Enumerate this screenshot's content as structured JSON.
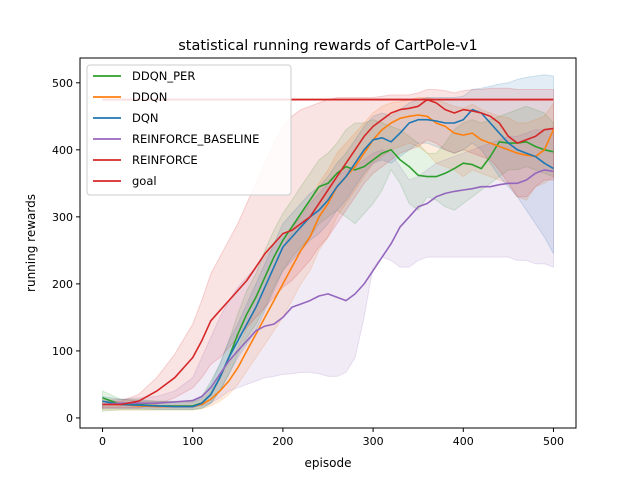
{
  "chart_data": {
    "type": "line",
    "title": "statistical running rewards of CartPole-v1",
    "xlabel": "episode",
    "ylabel": "running rewards",
    "xlim": [
      -25,
      525
    ],
    "ylim": [
      -15,
      537
    ],
    "xticks": [
      0,
      100,
      200,
      300,
      400,
      500
    ],
    "yticks": [
      0,
      100,
      200,
      300,
      400,
      500
    ],
    "grid": false,
    "legend_position": "top-left",
    "goal_value": 475,
    "series": [
      {
        "name": "DDQN_PER",
        "color": "#2ca02c",
        "x": [
          0,
          20,
          40,
          60,
          80,
          100,
          110,
          120,
          130,
          140,
          150,
          160,
          170,
          180,
          190,
          200,
          210,
          220,
          230,
          240,
          250,
          260,
          270,
          280,
          290,
          300,
          310,
          320,
          330,
          340,
          350,
          360,
          370,
          380,
          390,
          400,
          410,
          420,
          430,
          440,
          450,
          460,
          470,
          480,
          490,
          500
        ],
        "y": [
          30,
          20,
          20,
          18,
          18,
          18,
          22,
          35,
          60,
          90,
          125,
          155,
          180,
          210,
          240,
          265,
          285,
          305,
          325,
          345,
          350,
          365,
          375,
          370,
          375,
          385,
          395,
          400,
          385,
          375,
          362,
          360,
          360,
          365,
          372,
          380,
          378,
          372,
          390,
          412,
          410,
          410,
          412,
          405,
          400,
          397
        ],
        "lower": [
          10,
          12,
          12,
          12,
          12,
          12,
          14,
          22,
          40,
          65,
          95,
          120,
          140,
          165,
          195,
          220,
          240,
          255,
          270,
          290,
          300,
          310,
          300,
          290,
          305,
          320,
          340,
          370,
          350,
          320,
          310,
          330,
          325,
          315,
          310,
          320,
          330,
          340,
          350,
          360,
          370,
          370,
          375,
          370,
          365,
          360
        ],
        "upper": [
          40,
          28,
          28,
          25,
          25,
          25,
          32,
          55,
          80,
          115,
          155,
          190,
          215,
          250,
          280,
          305,
          325,
          345,
          365,
          385,
          395,
          410,
          430,
          440,
          440,
          445,
          440,
          435,
          430,
          420,
          410,
          395,
          395,
          410,
          430,
          440,
          445,
          440,
          445,
          450,
          455,
          460,
          465,
          460,
          455,
          440
        ]
      },
      {
        "name": "DDQN",
        "color": "#ff7f0e",
        "x": [
          0,
          20,
          40,
          60,
          80,
          100,
          110,
          120,
          130,
          140,
          150,
          160,
          170,
          180,
          190,
          200,
          210,
          220,
          230,
          240,
          250,
          260,
          270,
          280,
          290,
          300,
          310,
          320,
          330,
          340,
          350,
          360,
          370,
          380,
          390,
          400,
          410,
          420,
          430,
          440,
          450,
          460,
          470,
          480,
          490,
          500
        ],
        "y": [
          20,
          20,
          18,
          17,
          17,
          17,
          20,
          28,
          40,
          55,
          75,
          100,
          125,
          150,
          175,
          200,
          225,
          250,
          270,
          300,
          320,
          345,
          360,
          375,
          395,
          415,
          430,
          440,
          447,
          450,
          452,
          450,
          440,
          435,
          425,
          422,
          425,
          415,
          410,
          405,
          400,
          395,
          392,
          390,
          400,
          430
        ],
        "lower": [
          12,
          12,
          12,
          12,
          12,
          12,
          14,
          18,
          25,
          35,
          50,
          70,
          90,
          110,
          130,
          150,
          175,
          200,
          220,
          250,
          270,
          300,
          320,
          340,
          360,
          380,
          390,
          400,
          405,
          410,
          405,
          395,
          380,
          375,
          370,
          360,
          370,
          365,
          360,
          355,
          350,
          330,
          325,
          345,
          350,
          360
        ],
        "upper": [
          28,
          28,
          25,
          24,
          24,
          24,
          28,
          40,
          60,
          80,
          105,
          135,
          165,
          195,
          225,
          255,
          280,
          305,
          325,
          350,
          370,
          395,
          410,
          425,
          440,
          455,
          465,
          470,
          472,
          475,
          478,
          478,
          475,
          470,
          465,
          462,
          468,
          460,
          455,
          450,
          448,
          440,
          440,
          445,
          450,
          470
        ]
      },
      {
        "name": "DQN",
        "color": "#1f77b4",
        "x": [
          0,
          20,
          40,
          60,
          80,
          100,
          110,
          120,
          130,
          140,
          150,
          160,
          170,
          180,
          190,
          200,
          210,
          220,
          230,
          240,
          250,
          260,
          270,
          280,
          290,
          300,
          310,
          320,
          330,
          340,
          350,
          360,
          370,
          380,
          390,
          400,
          410,
          420,
          430,
          440,
          450,
          460,
          470,
          480,
          490,
          500
        ],
        "y": [
          25,
          20,
          19,
          18,
          17,
          17,
          22,
          35,
          60,
          90,
          115,
          140,
          165,
          195,
          225,
          255,
          270,
          285,
          300,
          310,
          325,
          345,
          360,
          380,
          400,
          415,
          418,
          412,
          425,
          440,
          445,
          445,
          443,
          440,
          440,
          445,
          460,
          455,
          440,
          425,
          410,
          400,
          395,
          390,
          380,
          372
        ],
        "lower": [
          14,
          14,
          14,
          13,
          13,
          13,
          15,
          22,
          40,
          65,
          90,
          110,
          130,
          160,
          190,
          220,
          235,
          250,
          265,
          275,
          290,
          310,
          325,
          345,
          365,
          380,
          385,
          380,
          390,
          400,
          410,
          410,
          405,
          400,
          395,
          400,
          410,
          400,
          380,
          360,
          345,
          330,
          310,
          290,
          270,
          245
        ],
        "upper": [
          32,
          28,
          26,
          25,
          24,
          24,
          30,
          50,
          80,
          115,
          140,
          170,
          200,
          230,
          260,
          290,
          305,
          320,
          335,
          345,
          360,
          380,
          395,
          415,
          435,
          450,
          455,
          450,
          460,
          470,
          475,
          478,
          478,
          478,
          478,
          480,
          490,
          492,
          495,
          498,
          500,
          505,
          508,
          510,
          512,
          510
        ]
      },
      {
        "name": "REINFORCE_BASELINE",
        "color": "#9467bd",
        "x": [
          0,
          20,
          40,
          60,
          80,
          100,
          110,
          120,
          130,
          140,
          150,
          160,
          170,
          180,
          190,
          200,
          210,
          220,
          230,
          240,
          250,
          260,
          270,
          280,
          290,
          300,
          310,
          320,
          330,
          340,
          350,
          360,
          370,
          380,
          390,
          400,
          410,
          420,
          430,
          440,
          450,
          460,
          470,
          480,
          490,
          500
        ],
        "y": [
          20,
          22,
          22,
          22,
          24,
          26,
          32,
          45,
          65,
          85,
          100,
          115,
          130,
          137,
          140,
          150,
          165,
          170,
          175,
          182,
          185,
          180,
          175,
          185,
          200,
          220,
          240,
          260,
          285,
          300,
          315,
          320,
          330,
          335,
          338,
          340,
          342,
          345,
          345,
          348,
          350,
          350,
          355,
          365,
          370,
          368
        ],
        "lower": [
          15,
          15,
          15,
          15,
          15,
          15,
          18,
          22,
          30,
          40,
          45,
          50,
          55,
          60,
          62,
          65,
          66,
          68,
          68,
          66,
          62,
          62,
          68,
          90,
          150,
          225,
          240,
          235,
          225,
          225,
          235,
          240,
          240,
          240,
          240,
          240,
          240,
          240,
          240,
          240,
          240,
          235,
          235,
          230,
          230,
          225
        ],
        "upper": [
          25,
          28,
          30,
          32,
          40,
          60,
          90,
          120,
          150,
          175,
          195,
          210,
          225,
          240,
          255,
          270,
          285,
          300,
          320,
          335,
          350,
          360,
          370,
          375,
          385,
          395,
          400,
          395,
          375,
          355,
          360,
          370,
          380,
          385,
          390,
          395,
          400,
          405,
          410,
          415,
          420,
          420,
          425,
          430,
          430,
          430
        ]
      },
      {
        "name": "REINFORCE",
        "color": "#d62728",
        "x": [
          0,
          20,
          40,
          60,
          80,
          100,
          110,
          120,
          130,
          140,
          150,
          160,
          170,
          180,
          190,
          200,
          210,
          220,
          230,
          240,
          250,
          260,
          270,
          280,
          290,
          300,
          310,
          320,
          330,
          340,
          350,
          360,
          370,
          380,
          390,
          400,
          410,
          420,
          430,
          440,
          450,
          460,
          470,
          480,
          490,
          500
        ],
        "y": [
          20,
          20,
          25,
          40,
          60,
          90,
          115,
          145,
          160,
          175,
          190,
          205,
          225,
          245,
          260,
          275,
          280,
          290,
          300,
          320,
          340,
          360,
          380,
          400,
          420,
          435,
          445,
          455,
          460,
          462,
          465,
          475,
          470,
          460,
          455,
          460,
          458,
          455,
          450,
          440,
          420,
          410,
          415,
          420,
          430,
          432
        ],
        "lower": [
          15,
          15,
          15,
          20,
          30,
          45,
          60,
          80,
          90,
          105,
          120,
          135,
          150,
          165,
          180,
          195,
          205,
          220,
          235,
          255,
          270,
          290,
          310,
          330,
          350,
          365,
          375,
          385,
          395,
          400,
          405,
          415,
          410,
          400,
          395,
          400,
          395,
          390,
          385,
          370,
          350,
          330,
          330,
          345,
          355,
          355
        ],
        "upper": [
          25,
          25,
          35,
          60,
          95,
          140,
          175,
          215,
          240,
          265,
          290,
          320,
          350,
          380,
          410,
          435,
          450,
          460,
          465,
          470,
          475,
          478,
          478,
          478,
          478,
          478,
          480,
          482,
          482,
          482,
          485,
          490,
          490,
          488,
          485,
          488,
          490,
          490,
          492,
          492,
          492,
          490,
          490,
          490,
          490,
          490
        ]
      }
    ]
  },
  "legend": [
    {
      "label": "DDQN_PER",
      "color": "#2ca02c"
    },
    {
      "label": "DDQN",
      "color": "#ff7f0e"
    },
    {
      "label": "DQN",
      "color": "#1f77b4"
    },
    {
      "label": "REINFORCE_BASELINE",
      "color": "#9467bd"
    },
    {
      "label": "REINFORCE",
      "color": "#d62728"
    },
    {
      "label": "goal",
      "color": "#d62728"
    }
  ]
}
